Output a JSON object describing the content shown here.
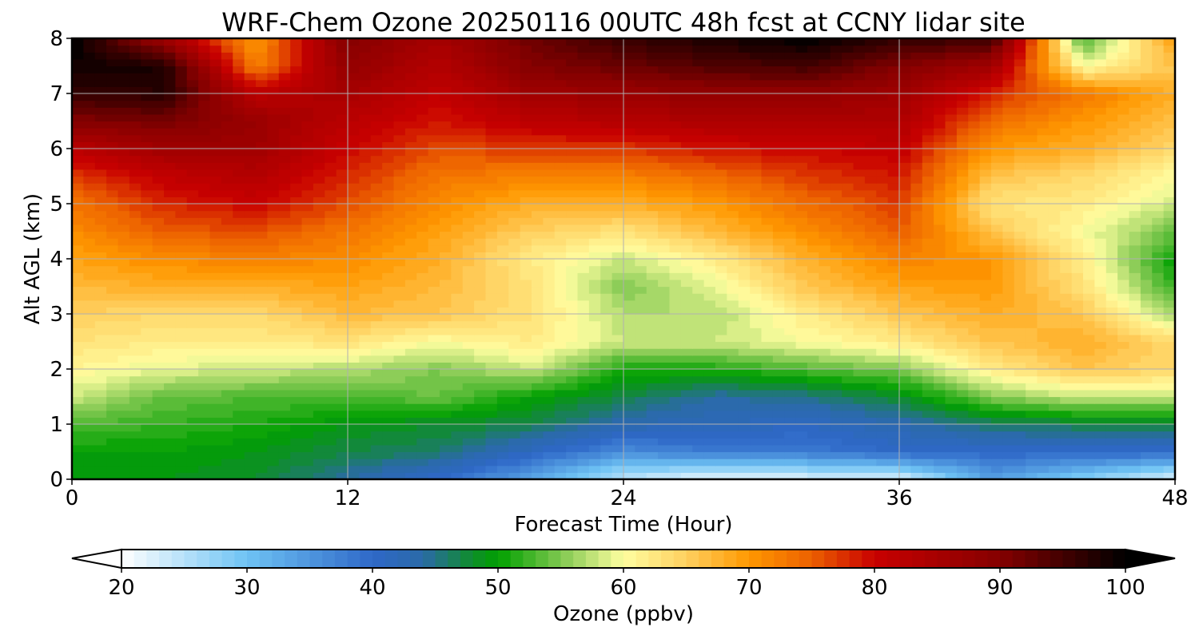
{
  "chart_data": {
    "type": "heatmap",
    "title": "WRF-Chem Ozone  20250116 00UTC 48h fcst at CCNY lidar site",
    "xlabel": "Forecast Time (Hour)",
    "ylabel": "Alt AGL (km)",
    "xlim": [
      0,
      48
    ],
    "ylim": [
      0,
      8
    ],
    "xticks": [
      0,
      12,
      24,
      36,
      48
    ],
    "yticks": [
      0,
      1,
      2,
      3,
      4,
      5,
      6,
      7,
      8
    ],
    "grid": true,
    "x": [
      0,
      4,
      8,
      12,
      16,
      20,
      24,
      28,
      32,
      36,
      40,
      44,
      48
    ],
    "y": [
      0,
      0.5,
      1,
      1.5,
      2,
      2.5,
      3,
      3.5,
      4,
      4.5,
      5,
      5.5,
      6,
      6.5,
      7,
      7.5,
      8
    ],
    "z": [
      [
        49,
        49,
        48,
        44,
        40,
        33,
        24,
        21,
        22,
        22,
        34,
        28,
        22
      ],
      [
        50,
        50,
        49,
        47,
        46,
        41,
        36,
        38,
        38,
        40,
        40,
        40,
        40
      ],
      [
        53,
        52,
        51,
        49,
        48,
        47,
        43,
        42,
        41,
        43,
        46,
        47,
        47
      ],
      [
        58,
        54,
        53,
        53,
        54,
        50,
        47,
        44,
        45,
        48,
        55,
        58,
        58
      ],
      [
        61,
        59,
        58,
        57,
        55,
        58,
        51,
        51,
        53,
        55,
        62,
        66,
        64
      ],
      [
        63,
        62,
        62,
        63,
        60,
        62,
        58,
        58,
        60,
        62,
        66,
        68,
        64
      ],
      [
        65,
        64,
        64,
        67,
        66,
        63,
        57,
        57,
        62,
        66,
        68,
        66,
        56
      ],
      [
        67,
        68,
        68,
        69,
        67,
        63,
        55,
        59,
        66,
        69,
        70,
        63,
        52
      ],
      [
        69,
        71,
        72,
        71,
        68,
        62,
        58,
        62,
        68,
        72,
        70,
        62,
        50
      ],
      [
        71,
        75,
        76,
        73,
        69,
        65,
        63,
        67,
        71,
        75,
        66,
        60,
        54
      ],
      [
        73,
        78,
        80,
        76,
        71,
        68,
        68,
        70,
        74,
        77,
        63,
        62,
        58
      ],
      [
        77,
        81,
        83,
        78,
        73,
        72,
        72,
        74,
        77,
        79,
        66,
        64,
        60
      ],
      [
        82,
        86,
        86,
        80,
        76,
        77,
        77,
        79,
        80,
        81,
        70,
        68,
        64
      ],
      [
        90,
        91,
        87,
        82,
        79,
        82,
        83,
        84,
        84,
        84,
        74,
        70,
        66
      ],
      [
        96,
        97,
        82,
        85,
        81,
        86,
        87,
        88,
        88,
        86,
        78,
        73,
        68
      ],
      [
        99,
        98,
        72,
        88,
        83,
        90,
        92,
        94,
        95,
        90,
        86,
        60,
        66
      ],
      [
        100,
        86,
        70,
        90,
        85,
        92,
        96,
        98,
        100,
        96,
        96,
        52,
        70
      ]
    ],
    "colorbar": {
      "label": "Ozone  (ppbv)",
      "min": 20,
      "max": 100,
      "ticks": [
        20,
        30,
        40,
        50,
        60,
        70,
        80,
        90,
        100
      ],
      "extend": "both",
      "levels_step": 1
    },
    "colormap_stops": [
      {
        "v": 20,
        "c": "#ffffff"
      },
      {
        "v": 30,
        "c": "#6ec3f4"
      },
      {
        "v": 40,
        "c": "#2f68c8"
      },
      {
        "v": 44,
        "c": "#2a6aa8"
      },
      {
        "v": 48,
        "c": "#0f8d2a"
      },
      {
        "v": 50,
        "c": "#00a000"
      },
      {
        "v": 55,
        "c": "#80c850"
      },
      {
        "v": 60,
        "c": "#fffea0"
      },
      {
        "v": 65,
        "c": "#ffd060"
      },
      {
        "v": 70,
        "c": "#ff9800"
      },
      {
        "v": 75,
        "c": "#ec6000"
      },
      {
        "v": 80,
        "c": "#c80000"
      },
      {
        "v": 90,
        "c": "#850000"
      },
      {
        "v": 100,
        "c": "#000000"
      }
    ]
  }
}
